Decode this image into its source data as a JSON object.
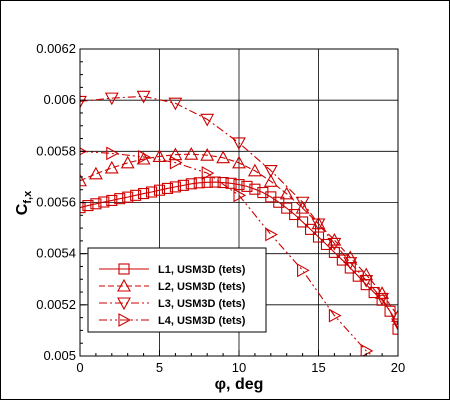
{
  "chart_data": {
    "type": "line",
    "title": "",
    "xlabel": "φ, deg",
    "ylabel": "C",
    "ylabel_sub": "f,x",
    "xlim": [
      0,
      20
    ],
    "ylim": [
      0.005,
      0.0062
    ],
    "xticks": [
      0,
      5,
      10,
      15,
      20
    ],
    "xtick_labels": [
      "0",
      "5",
      "10",
      "15",
      "20"
    ],
    "yticks": [
      0.005,
      0.0052,
      0.0054,
      0.0056,
      0.0058,
      0.006,
      0.0062
    ],
    "ytick_labels": [
      "0.005",
      "0.0052",
      "0.0054",
      "0.0056",
      "0.0058",
      "0.006",
      "0.0062"
    ],
    "grid": true,
    "legend_position": "bottom-left",
    "color": "#cc0000",
    "series": [
      {
        "name": "L1, USM3D (tets)",
        "marker": "square",
        "dash": "solid",
        "x": [
          0,
          0.5,
          1,
          1.5,
          2,
          2.5,
          3,
          3.5,
          4,
          4.5,
          5,
          5.5,
          6,
          6.5,
          7,
          7.5,
          8,
          8.5,
          9,
          9.5,
          10,
          10.5,
          11,
          11.5,
          12,
          12.5,
          13,
          13.5,
          14,
          14.5,
          15,
          15.5,
          16,
          16.5,
          17,
          17.5,
          18,
          18.5,
          19,
          19.5,
          20
        ],
        "y": [
          0.00558,
          0.005588,
          0.005595,
          0.005602,
          0.005608,
          0.005615,
          0.005621,
          0.005628,
          0.005635,
          0.005641,
          0.005648,
          0.005655,
          0.005661,
          0.005667,
          0.005673,
          0.005677,
          0.005679,
          0.00568,
          0.005678,
          0.005675,
          0.00567,
          0.005663,
          0.005652,
          0.005639,
          0.005622,
          0.005601,
          0.005578,
          0.005553,
          0.005524,
          0.005495,
          0.005465,
          0.005436,
          0.005405,
          0.005375,
          0.005344,
          0.005312,
          0.005279,
          0.005248,
          0.005218,
          0.005175,
          0.005105
        ]
      },
      {
        "name": "L2, USM3D (tets)",
        "marker": "triangle-up",
        "dash": "dashed",
        "x": [
          0,
          1,
          2,
          3,
          4,
          5,
          6,
          7,
          8,
          9,
          10,
          11,
          12,
          13,
          14,
          15,
          16,
          17,
          18,
          19,
          20
        ],
        "y": [
          0.005685,
          0.005712,
          0.005735,
          0.005755,
          0.00577,
          0.00578,
          0.005787,
          0.005789,
          0.005785,
          0.005775,
          0.005755,
          0.005724,
          0.005683,
          0.005634,
          0.005578,
          0.005517,
          0.005453,
          0.005385,
          0.005318,
          0.005245,
          0.005155
        ]
      },
      {
        "name": "L3, USM3D (tets)",
        "marker": "triangle-down",
        "dash": "dashdot",
        "x": [
          0,
          2,
          4,
          6,
          8,
          10,
          12,
          14,
          15,
          16,
          17,
          18,
          19,
          20
        ],
        "y": [
          0.005995,
          0.006008,
          0.006015,
          0.005988,
          0.005925,
          0.005833,
          0.005725,
          0.005601,
          0.005516,
          0.00544,
          0.005365,
          0.005295,
          0.005225,
          0.005125
        ]
      },
      {
        "name": "L4, USM3D (tets)",
        "marker": "triangle-right",
        "dash": "dashdotdot",
        "x": [
          0,
          2,
          4,
          6,
          8,
          10,
          12,
          14,
          16,
          18,
          18.4
        ],
        "y": [
          0.0058,
          0.005792,
          0.005778,
          0.005756,
          0.005715,
          0.005628,
          0.005475,
          0.005335,
          0.005158,
          0.00502,
          0.005
        ]
      }
    ]
  }
}
